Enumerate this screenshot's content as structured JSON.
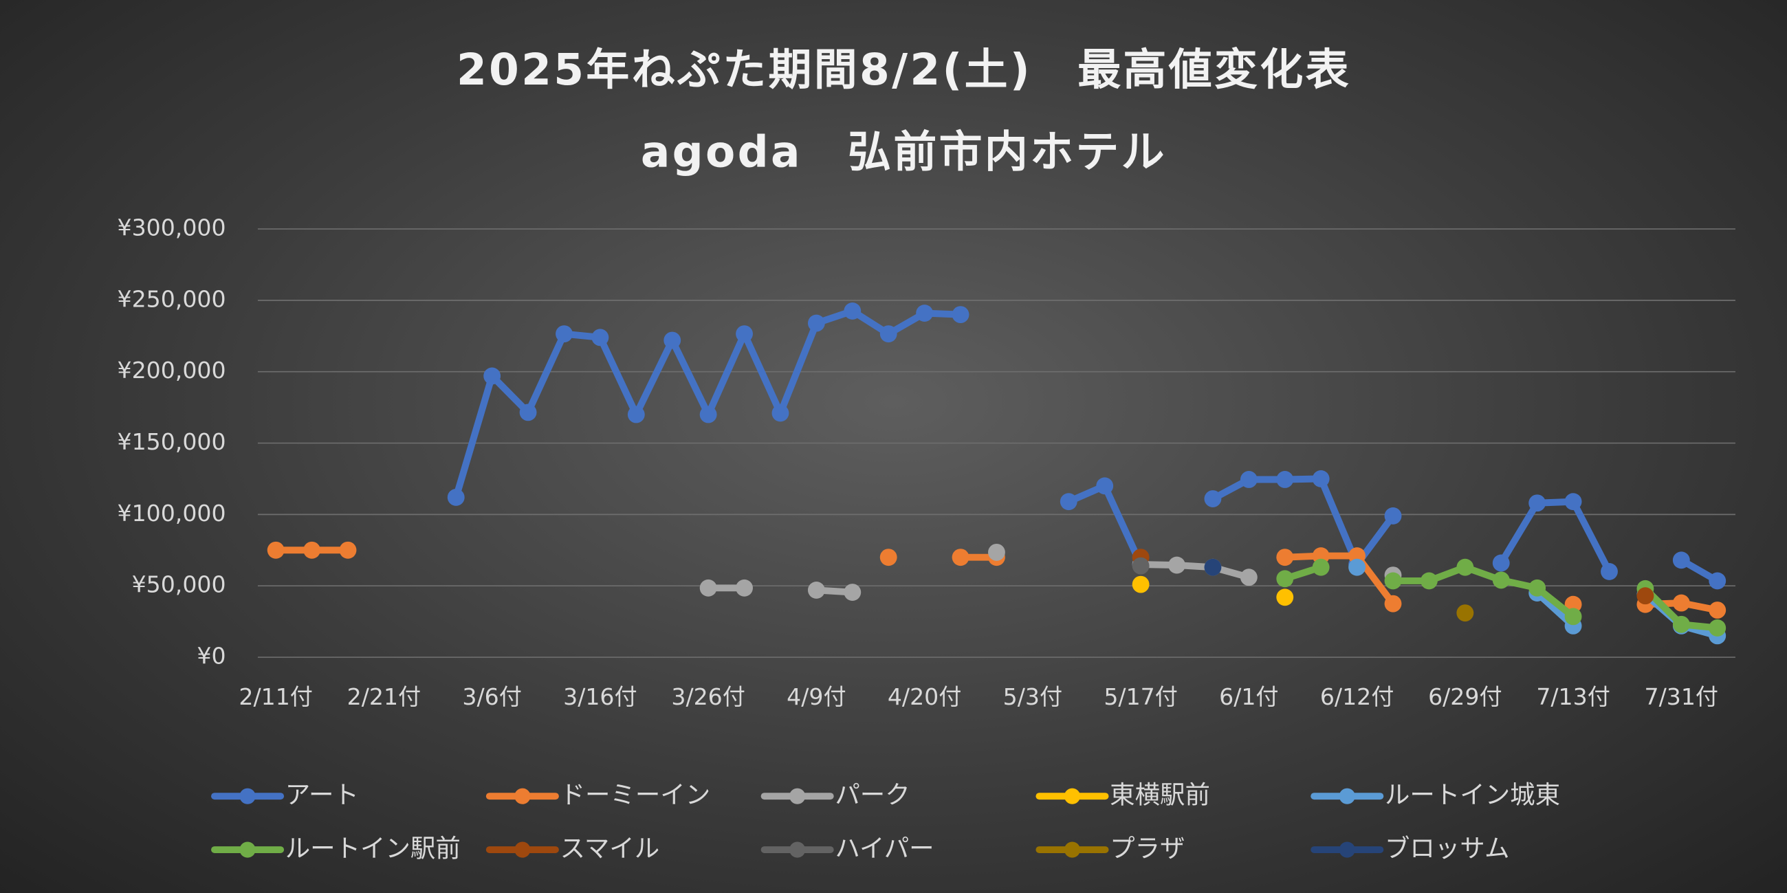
{
  "chart_data": {
    "type": "line",
    "title": "2025年ねぷた期間8/2(土)　最高値変化表",
    "subtitle": "agoda　弘前市内ホテル",
    "categories": [
      "2/11付",
      null,
      null,
      "2/21付",
      null,
      null,
      "3/6付",
      null,
      null,
      "3/16付",
      null,
      null,
      "3/26付",
      null,
      null,
      "4/9付",
      null,
      null,
      "4/20付",
      null,
      null,
      "5/3付",
      null,
      null,
      "5/17付",
      null,
      null,
      "6/1付",
      null,
      null,
      "6/12付",
      null,
      null,
      "6/29付",
      null,
      null,
      "7/13付",
      null,
      null,
      "7/31付",
      null
    ],
    "ylim": [
      0,
      300000
    ],
    "yticks": [
      {
        "value": 0,
        "label": "¥0"
      },
      {
        "value": 50000,
        "label": "¥50,000"
      },
      {
        "value": 100000,
        "label": "¥100,000"
      },
      {
        "value": 150000,
        "label": "¥150,000"
      },
      {
        "value": 200000,
        "label": "¥200,000"
      },
      {
        "value": 250000,
        "label": "¥250,000"
      },
      {
        "value": 300000,
        "label": "¥300,000"
      }
    ],
    "grid": true,
    "legend": "bottom",
    "series": [
      {
        "name": "アート",
        "color": "#4472c4",
        "values": [
          null,
          null,
          null,
          null,
          null,
          112000,
          197000,
          171500,
          226500,
          224000,
          170000,
          222000,
          170000,
          226500,
          171000,
          234000,
          242500,
          226500,
          241000,
          240000,
          null,
          null,
          109000,
          120000,
          65000,
          null,
          111000,
          124500,
          124500,
          125000,
          65000,
          99000,
          null,
          null,
          66000,
          108000,
          109000,
          60000,
          null,
          68000,
          53500
        ]
      },
      {
        "name": "ドーミーイン",
        "color": "#ed7d31",
        "values": [
          75000,
          75000,
          75000,
          null,
          null,
          null,
          null,
          null,
          null,
          null,
          null,
          null,
          null,
          null,
          null,
          null,
          null,
          70000,
          null,
          70000,
          70000,
          null,
          null,
          null,
          null,
          null,
          null,
          null,
          70000,
          71000,
          71000,
          37500,
          null,
          null,
          null,
          null,
          37000,
          null,
          37000,
          38000,
          33000
        ]
      },
      {
        "name": "パーク",
        "color": "#a5a5a5",
        "values": [
          null,
          null,
          null,
          null,
          null,
          null,
          null,
          null,
          null,
          null,
          null,
          null,
          48500,
          48500,
          null,
          47000,
          45500,
          null,
          null,
          null,
          73500,
          null,
          null,
          null,
          65000,
          64500,
          63000,
          56000,
          null,
          null,
          null,
          57500,
          null,
          null,
          null,
          null,
          null,
          null,
          null,
          null,
          null
        ]
      },
      {
        "name": "東横駅前",
        "color": "#ffc000",
        "values": [
          null,
          null,
          null,
          null,
          null,
          null,
          null,
          null,
          null,
          null,
          null,
          null,
          null,
          null,
          null,
          null,
          null,
          null,
          null,
          null,
          null,
          null,
          null,
          null,
          51000,
          null,
          null,
          null,
          42000,
          null,
          null,
          null,
          null,
          null,
          null,
          null,
          null,
          null,
          null,
          null,
          null
        ]
      },
      {
        "name": "ルートイン城東",
        "color": "#5b9bd5",
        "values": [
          null,
          null,
          null,
          null,
          null,
          null,
          null,
          null,
          null,
          null,
          null,
          null,
          null,
          null,
          null,
          null,
          null,
          null,
          null,
          null,
          null,
          null,
          null,
          null,
          null,
          null,
          null,
          null,
          null,
          null,
          63000,
          null,
          null,
          null,
          null,
          45000,
          22000,
          null,
          44000,
          22000,
          15000
        ]
      },
      {
        "name": "ルートイン駅前",
        "color": "#70ad47",
        "values": [
          null,
          null,
          null,
          null,
          null,
          null,
          null,
          null,
          null,
          null,
          null,
          null,
          null,
          null,
          null,
          null,
          null,
          null,
          null,
          null,
          null,
          null,
          null,
          null,
          null,
          null,
          null,
          null,
          55000,
          63000,
          null,
          53500,
          53500,
          63000,
          54000,
          48500,
          28500,
          null,
          48000,
          23000,
          20500
        ]
      },
      {
        "name": "スマイル",
        "color": "#9e480e",
        "values": [
          null,
          null,
          null,
          null,
          null,
          null,
          null,
          null,
          null,
          null,
          null,
          null,
          null,
          null,
          null,
          null,
          null,
          null,
          null,
          null,
          null,
          null,
          null,
          null,
          70000,
          null,
          null,
          null,
          null,
          null,
          null,
          null,
          null,
          null,
          null,
          null,
          null,
          null,
          43000,
          null,
          null
        ]
      },
      {
        "name": "ハイパー",
        "color": "#636363",
        "values": [
          null,
          null,
          null,
          null,
          null,
          null,
          null,
          null,
          null,
          null,
          null,
          null,
          null,
          null,
          null,
          null,
          null,
          null,
          null,
          null,
          null,
          null,
          null,
          null,
          64000,
          null,
          null,
          null,
          null,
          null,
          null,
          null,
          null,
          null,
          null,
          null,
          null,
          null,
          null,
          null,
          null
        ]
      },
      {
        "name": "プラザ",
        "color": "#997300",
        "values": [
          null,
          null,
          null,
          null,
          null,
          null,
          null,
          null,
          null,
          null,
          null,
          null,
          null,
          null,
          null,
          null,
          null,
          null,
          null,
          null,
          null,
          null,
          null,
          null,
          null,
          null,
          null,
          null,
          null,
          null,
          null,
          null,
          null,
          31000,
          null,
          null,
          null,
          null,
          null,
          null,
          null
        ]
      },
      {
        "name": "ブロッサム",
        "color": "#264478",
        "values": [
          null,
          null,
          null,
          null,
          null,
          null,
          null,
          null,
          null,
          null,
          null,
          null,
          null,
          null,
          null,
          null,
          null,
          null,
          null,
          null,
          null,
          null,
          null,
          null,
          null,
          null,
          63000,
          null,
          null,
          null,
          null,
          null,
          null,
          null,
          null,
          null,
          null,
          null,
          null,
          null,
          null
        ]
      }
    ]
  }
}
